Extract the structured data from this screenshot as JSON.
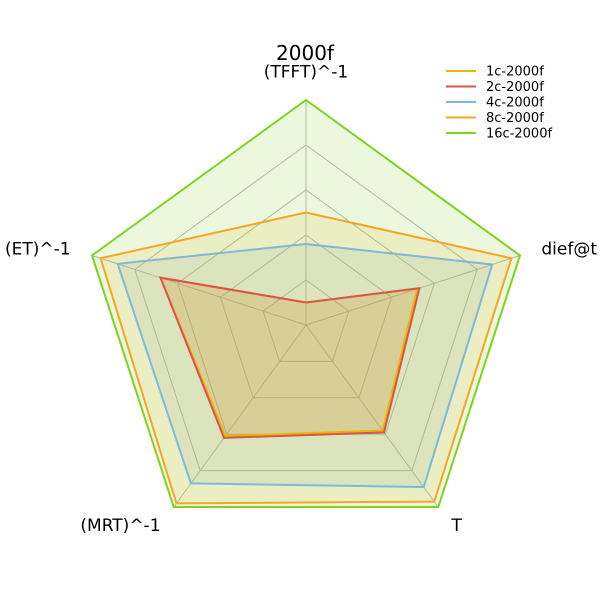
{
  "chart_data": {
    "type": "radar",
    "title": "2000f",
    "axes": [
      "(TFFT)^-1",
      "dief@t",
      "T",
      "(MRT)^-1",
      "(ET)^-1"
    ],
    "rings": [
      0.2,
      0.4,
      0.6,
      0.8,
      1.0
    ],
    "range": [
      0,
      1
    ],
    "legend_position": "top-right",
    "series": [
      {
        "name": "1c-2000f",
        "color": "#e8b800",
        "values": [
          0.1,
          0.52,
          0.58,
          0.61,
          0.68
        ]
      },
      {
        "name": "2c-2000f",
        "color": "#d9534f",
        "values": [
          0.1,
          0.53,
          0.59,
          0.62,
          0.68
        ]
      },
      {
        "name": "4c-2000f",
        "color": "#7fb8d8",
        "values": [
          0.36,
          0.87,
          0.89,
          0.87,
          0.88
        ]
      },
      {
        "name": "8c-2000f",
        "color": "#f5a623",
        "values": [
          0.5,
          0.96,
          0.97,
          0.98,
          0.96
        ]
      },
      {
        "name": "16c-2000f",
        "color": "#7ed321",
        "values": [
          1.0,
          1.0,
          1.0,
          1.0,
          1.0
        ]
      }
    ]
  }
}
